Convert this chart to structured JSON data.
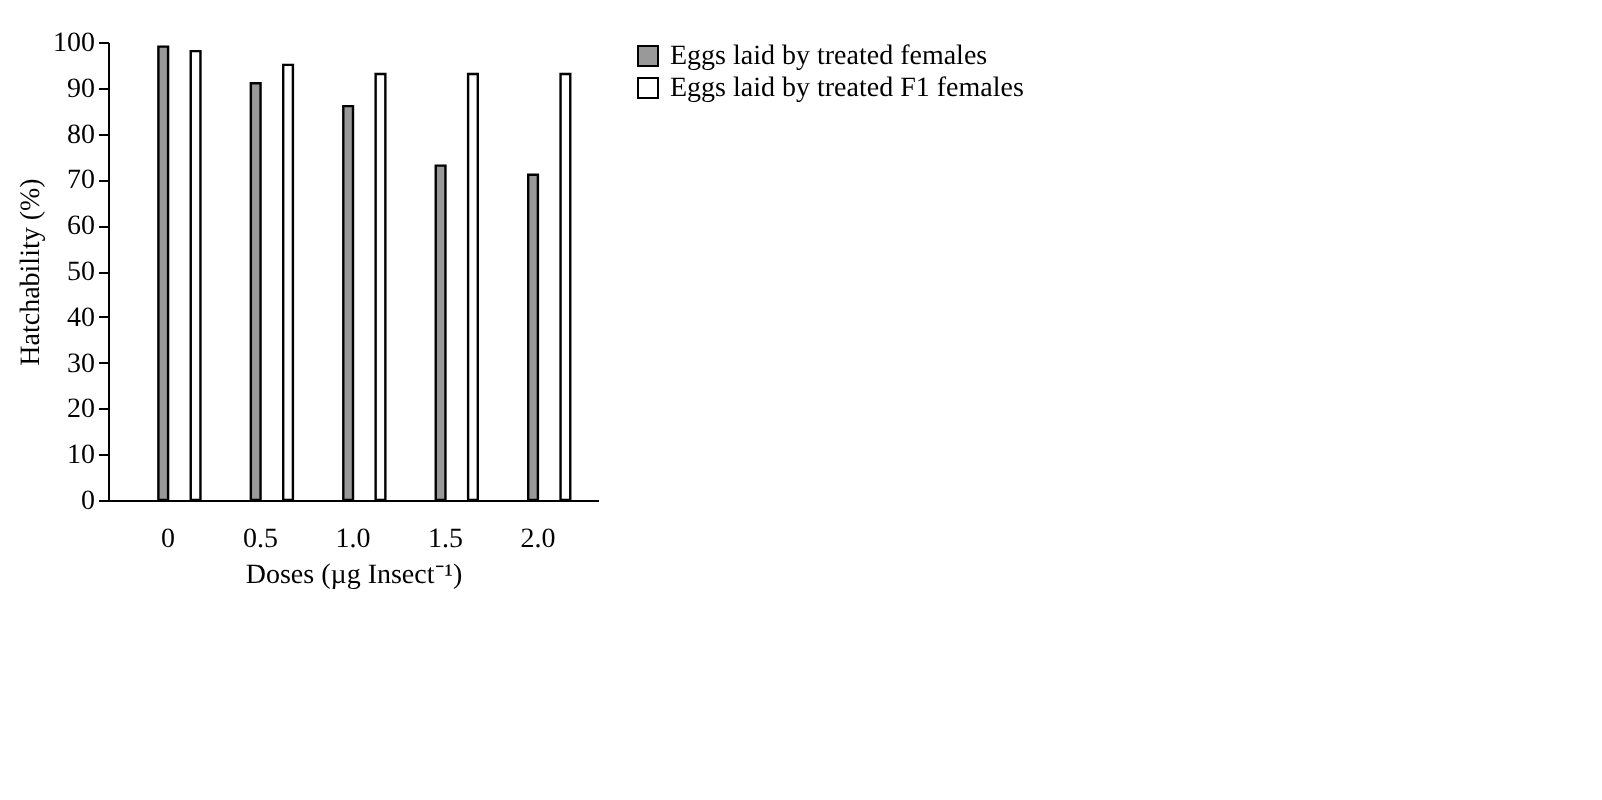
{
  "chart_data": {
    "type": "bar",
    "xlabel": "Doses (µg Insect⁻¹)",
    "ylabel": "Hatchability (%)",
    "categories": [
      "0",
      "0.5",
      "1.0",
      "1.5",
      "2.0"
    ],
    "series": [
      {
        "name": "Eggs laid by treated females",
        "color": "#999999",
        "values": [
          99,
          91,
          86,
          73,
          71
        ]
      },
      {
        "name": "Eggs laid by treated F1 females",
        "color": "#ffffff",
        "values": [
          98,
          95,
          93,
          93,
          93
        ]
      }
    ],
    "ylim": [
      0,
      100
    ],
    "yticks": [
      0,
      10,
      20,
      30,
      40,
      50,
      60,
      70,
      80,
      90,
      100
    ],
    "grid": false,
    "legend": "top right"
  }
}
